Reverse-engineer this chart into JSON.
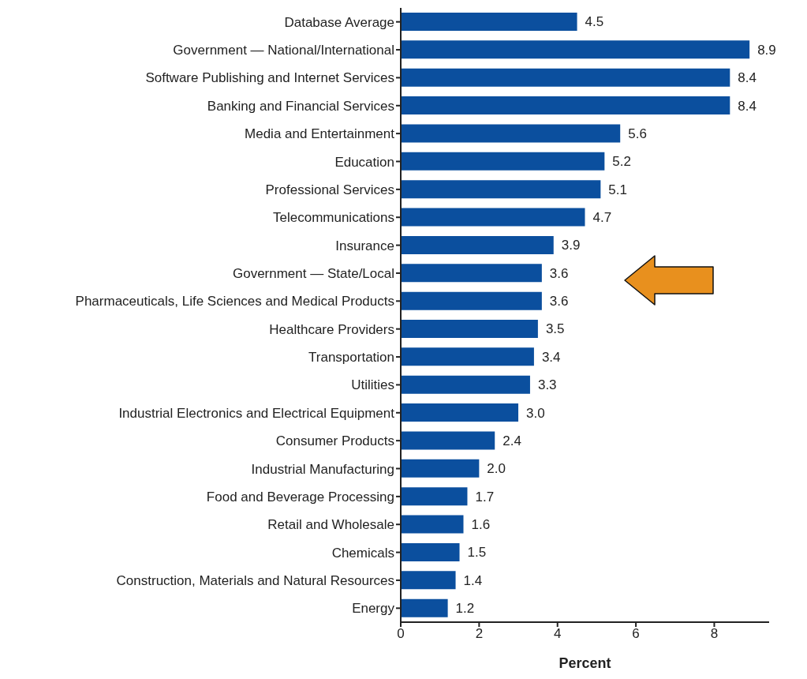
{
  "chart_data": {
    "type": "bar",
    "orientation": "horizontal",
    "xlabel": "Percent",
    "categories": [
      "Database Average",
      "Government — National/International",
      "Software Publishing and Internet Services",
      "Banking and Financial Services",
      "Media and Entertainment",
      "Education",
      "Professional Services",
      "Telecommunications",
      "Insurance",
      "Government — State/Local",
      "Pharmaceuticals, Life Sciences and Medical Products",
      "Healthcare Providers",
      "Transportation",
      "Utilities",
      "Industrial Electronics and Electrical Equipment",
      "Consumer Products",
      "Industrial Manufacturing",
      "Food and Beverage Processing",
      "Retail and Wholesale",
      "Chemicals",
      "Construction, Materials and Natural Resources",
      "Energy"
    ],
    "values": [
      4.5,
      8.9,
      8.4,
      8.4,
      5.6,
      5.2,
      5.1,
      4.7,
      3.9,
      3.6,
      3.6,
      3.5,
      3.4,
      3.3,
      3.0,
      2.4,
      2.0,
      1.7,
      1.6,
      1.5,
      1.4,
      1.2
    ],
    "value_labels": [
      "4.5",
      "8.9",
      "8.4",
      "8.4",
      "5.6",
      "5.2",
      "5.1",
      "4.7",
      "3.9",
      "3.6",
      "3.6",
      "3.5",
      "3.4",
      "3.3",
      "3.0",
      "2.4",
      "2.0",
      "1.7",
      "1.6",
      "1.5",
      "1.4",
      "1.2"
    ],
    "color": "#0b4f9e",
    "xlim": [
      0,
      9.4
    ],
    "xticks": [
      0,
      2,
      4,
      6,
      8
    ],
    "grid": false,
    "legend": false
  }
}
